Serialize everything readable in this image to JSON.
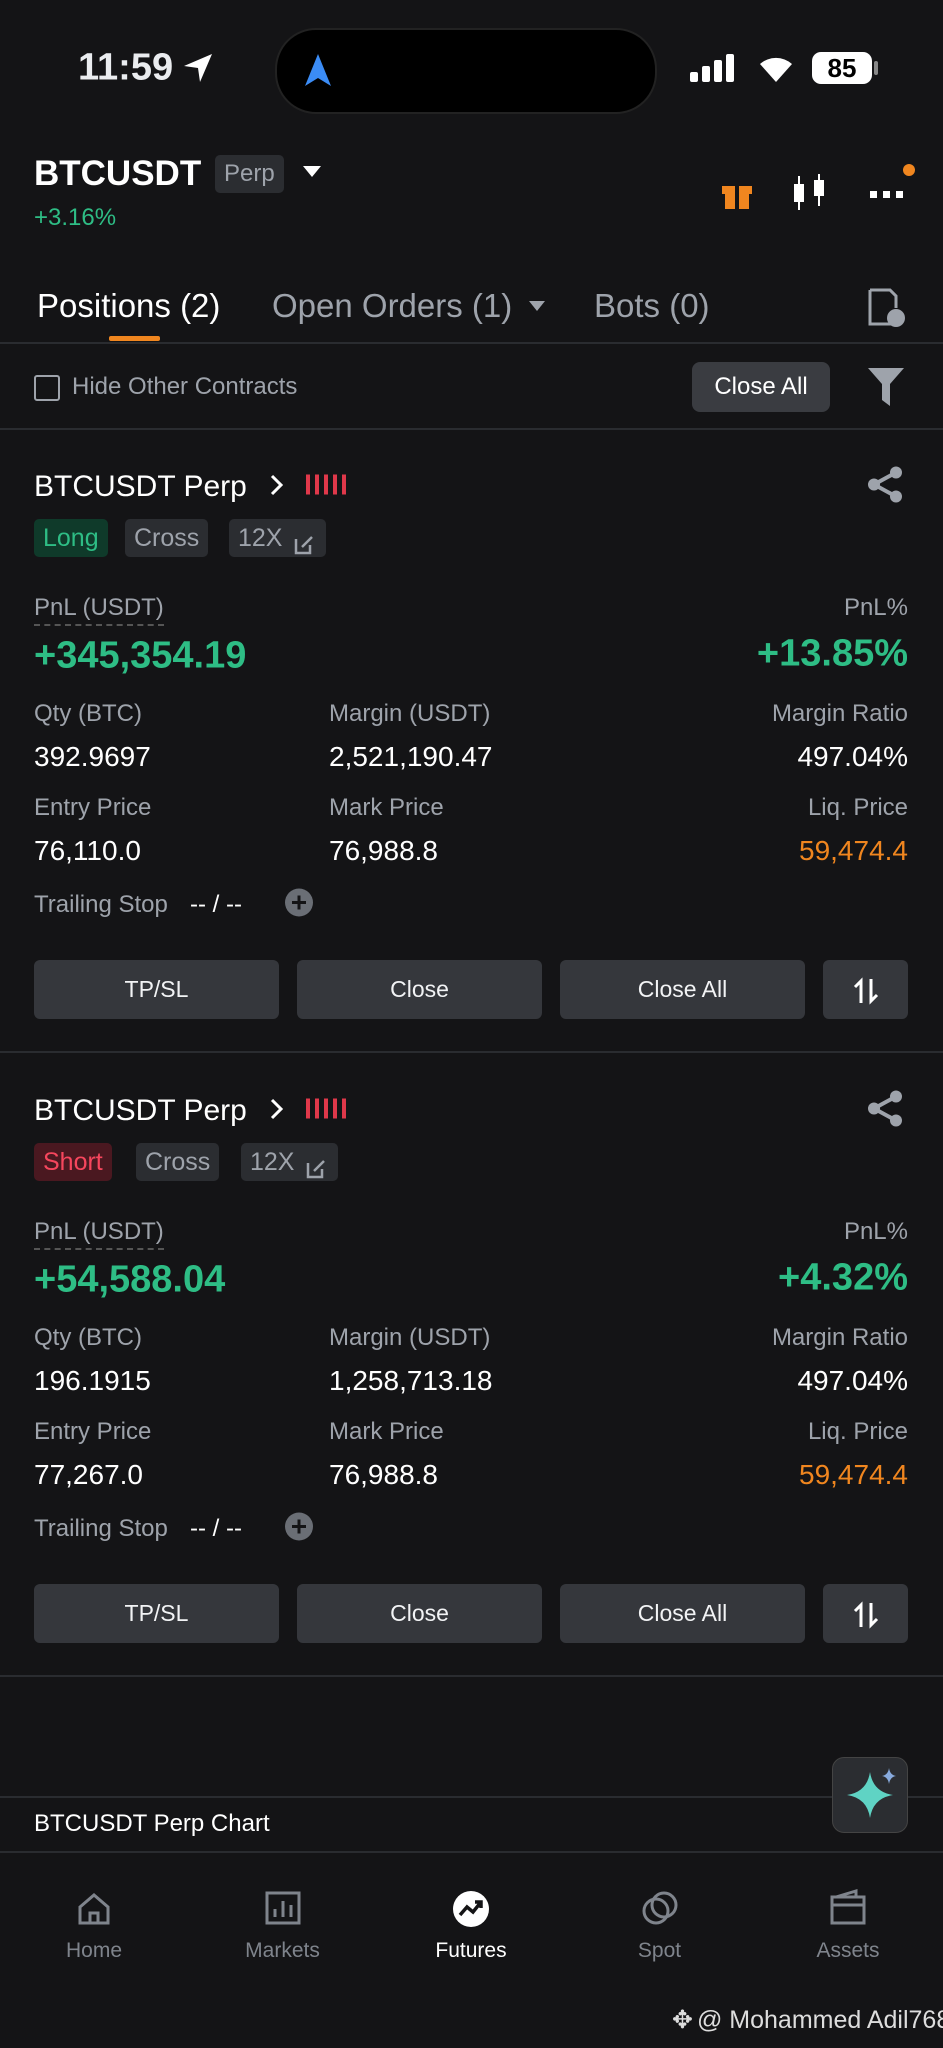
{
  "status_bar": {
    "time": "11:59",
    "battery": "85"
  },
  "header": {
    "symbol": "BTCUSDT",
    "tag": "Perp",
    "change": "+3.16%"
  },
  "tabs": [
    "Positions (2)",
    "Open Orders (1)",
    "Bots (0)"
  ],
  "filter": {
    "checkbox_label": "Hide Other Contracts",
    "button": "Close All"
  },
  "positions": [
    {
      "title": "BTCUSDT Perp",
      "side": "Long",
      "margin_mode": "Cross",
      "leverage": "12X",
      "pnl_label": "PnL (USDT)",
      "pnl": "+345,354.19",
      "pnl_pct_label": "PnL%",
      "pnl_pct": "+13.85%",
      "fields": [
        {
          "label": "Qty (BTC)",
          "value": "392.9697"
        },
        {
          "label": "Margin (USDT)",
          "value": "2,521,190.47"
        },
        {
          "label": "Margin Ratio",
          "value": "497.04%"
        },
        {
          "label": "Entry Price",
          "value": "76,110.0"
        },
        {
          "label": "Mark Price",
          "value": "76,988.8"
        },
        {
          "label": "Liq. Price",
          "value": "59,474.4"
        }
      ],
      "trailing_label": "Trailing Stop",
      "trailing_value": "-- / --",
      "buttons": [
        "TP/SL",
        "Close",
        "Close All"
      ]
    },
    {
      "title": "BTCUSDT Perp",
      "side": "Short",
      "margin_mode": "Cross",
      "leverage": "12X",
      "pnl_label": "PnL (USDT)",
      "pnl": "+54,588.04",
      "pnl_pct_label": "PnL%",
      "pnl_pct": "+4.32%",
      "fields": [
        {
          "label": "Qty (BTC)",
          "value": "196.1915"
        },
        {
          "label": "Margin (USDT)",
          "value": "1,258,713.18"
        },
        {
          "label": "Margin Ratio",
          "value": "497.04%"
        },
        {
          "label": "Entry Price",
          "value": "77,267.0"
        },
        {
          "label": "Mark Price",
          "value": "76,988.8"
        },
        {
          "label": "Liq. Price",
          "value": "59,474.4"
        }
      ],
      "trailing_label": "Trailing Stop",
      "trailing_value": "-- / --",
      "buttons": [
        "TP/SL",
        "Close",
        "Close All"
      ]
    }
  ],
  "chart_link": "BTCUSDT Perp Chart",
  "nav": [
    "Home",
    "Markets",
    "Futures",
    "Spot",
    "Assets"
  ],
  "watermark": "@ Mohammed Adil768"
}
